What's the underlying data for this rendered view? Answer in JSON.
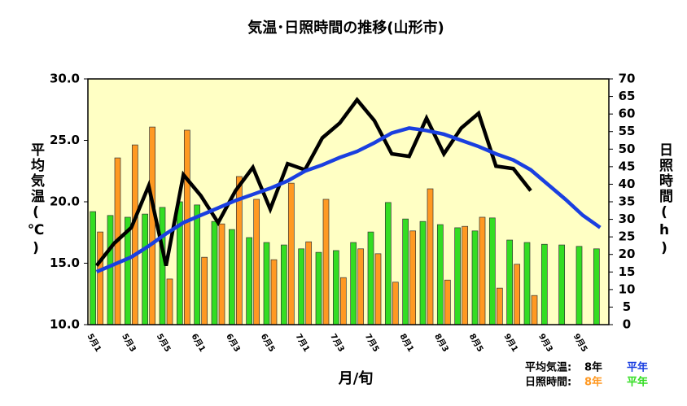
{
  "chart_data": {
    "type": "bar-line",
    "title": "気温･日照時間の推移(山形市)",
    "x_label": "月/旬",
    "y_label": "平均気温(℃)",
    "y2_label": "日照時間(h)",
    "categories": [
      "5月1",
      null,
      "5月3",
      null,
      "5月5",
      null,
      "6月1",
      null,
      "6月3",
      null,
      "6月5",
      null,
      "7月1",
      null,
      "7月3",
      null,
      "7月5",
      null,
      "8月1",
      null,
      "8月3",
      null,
      "8月5",
      null,
      "9月1",
      null,
      "9月3",
      null,
      "9月5",
      null
    ],
    "ylim": [
      10,
      30
    ],
    "yticks": [
      {
        "value": 10,
        "label": "10.0"
      },
      {
        "value": 15,
        "label": "15.0"
      },
      {
        "value": 20,
        "label": "20.0"
      },
      {
        "value": 25,
        "label": "25.0"
      },
      {
        "value": 30,
        "label": "30.0"
      }
    ],
    "y2lim": [
      0,
      70
    ],
    "y2ticks": [
      0,
      5,
      10,
      15,
      20,
      25,
      30,
      35,
      40,
      45,
      50,
      55,
      60,
      65,
      70
    ],
    "legend_groups": [
      "平均気温:",
      "日照時間:"
    ],
    "series": [
      {
        "name": "平年",
        "kind": "bar",
        "axis": "y2",
        "color": "#33dd22",
        "values": [
          32.2,
          31.1,
          30.6,
          31.5,
          33.4,
          35,
          34.1,
          29.4,
          27.1,
          24.8,
          23.4,
          22.7,
          21.6,
          20.6,
          21.1,
          23.4,
          26.4,
          34.8,
          30.1,
          29.4,
          28.5,
          27.6,
          26.7,
          30.4,
          24.1,
          23.4,
          22.9,
          22.7,
          22.3,
          21.6
        ]
      },
      {
        "name": "8年",
        "kind": "bar",
        "axis": "y2",
        "color": "#ff9922",
        "values": [
          26.4,
          47.5,
          51.2,
          56.3,
          13,
          55.4,
          19.2,
          28.7,
          42.2,
          35.7,
          18.5,
          40.3,
          23.6,
          35.7,
          13.4,
          21.6,
          20.2,
          12.1,
          26.7,
          38.7,
          12.7,
          28.0,
          30.6,
          10.4,
          17.2,
          8.3,
          null,
          null,
          null,
          null
        ]
      },
      {
        "name": "8年",
        "kind": "line",
        "color": "#000000",
        "values": [
          14.8,
          16.6,
          17.9,
          21.3,
          14.8,
          22.2,
          20.5,
          18.3,
          20.9,
          22.8,
          19.4,
          23.1,
          22.6,
          25.2,
          26.4,
          28.3,
          26.6,
          23.9,
          23.7,
          26.8,
          23.9,
          26.0,
          27.2,
          22.9,
          22.7,
          20.9,
          null,
          null,
          null,
          null
        ]
      },
      {
        "name": "平年",
        "kind": "line",
        "color": "#1a3fe0",
        "values": [
          14.3,
          14.9,
          15.5,
          16.4,
          17.4,
          18.3,
          18.9,
          19.5,
          20.1,
          20.6,
          21.1,
          21.7,
          22.5,
          23.0,
          23.6,
          24.1,
          24.8,
          25.6,
          26.0,
          25.8,
          25.5,
          25.0,
          24.5,
          23.9,
          23.4,
          22.6,
          21.4,
          20.2,
          18.9,
          17.9
        ]
      }
    ]
  }
}
